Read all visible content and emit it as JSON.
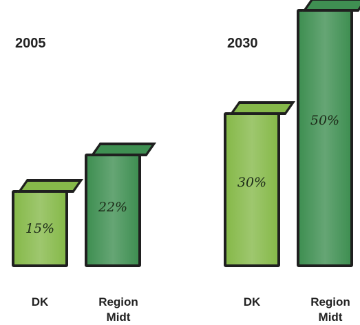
{
  "chart_data": [
    {
      "type": "bar",
      "title": "2005",
      "categories": [
        "DK",
        "Region Midt"
      ],
      "values": [
        15,
        22
      ],
      "value_labels": [
        "15%",
        "22%"
      ],
      "colors": [
        "#86b94a",
        "#3f8f52"
      ]
    },
    {
      "type": "bar",
      "title": "2030",
      "categories": [
        "DK",
        "Region Midt"
      ],
      "values": [
        30,
        50
      ],
      "value_labels": [
        "30%",
        "50%"
      ],
      "colors": [
        "#86b94a",
        "#3f8f52"
      ]
    }
  ]
}
